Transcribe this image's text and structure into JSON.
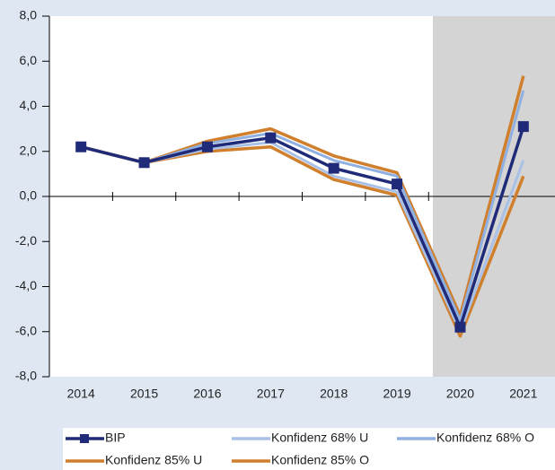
{
  "chart_data": {
    "type": "line",
    "categories": [
      "2014",
      "2015",
      "2016",
      "2017",
      "2018",
      "2019",
      "2020",
      "2021"
    ],
    "series": [
      {
        "name": "BIP",
        "color": "#1f2a78",
        "values": [
          2.2,
          1.5,
          2.2,
          2.6,
          1.25,
          0.55,
          -5.8,
          3.1
        ]
      },
      {
        "name": "Konfidenz 68% U",
        "color": "#a9c1e6",
        "values": [
          2.2,
          1.5,
          2.1,
          2.4,
          0.9,
          0.2,
          -6.0,
          1.6
        ]
      },
      {
        "name": "Konfidenz 68% O",
        "color": "#8fb0e0",
        "values": [
          2.2,
          1.5,
          2.35,
          2.8,
          1.6,
          0.9,
          -5.5,
          4.7
        ]
      },
      {
        "name": "Konfidenz 85% U",
        "color": "#d07f2c",
        "values": [
          2.2,
          1.5,
          2.0,
          2.2,
          0.75,
          0.05,
          -6.2,
          0.9
        ]
      },
      {
        "name": "Konfidenz 85% O",
        "color": "#d07f2c",
        "values": [
          2.2,
          1.5,
          2.45,
          3.0,
          1.8,
          1.05,
          -5.3,
          5.35
        ]
      }
    ],
    "ylim": [
      -8,
      8
    ],
    "yticks": [
      {
        "value": -8,
        "label": "-8,0"
      },
      {
        "value": -6,
        "label": "-6,0"
      },
      {
        "value": -4,
        "label": "-4,0"
      },
      {
        "value": -2,
        "label": "-2,0"
      },
      {
        "value": 0,
        "label": "0,0"
      },
      {
        "value": 2,
        "label": "2,0"
      },
      {
        "value": 4,
        "label": "4,0"
      },
      {
        "value": 6,
        "label": "6,0"
      },
      {
        "value": 8,
        "label": "8,0"
      }
    ],
    "grid": false
  }
}
